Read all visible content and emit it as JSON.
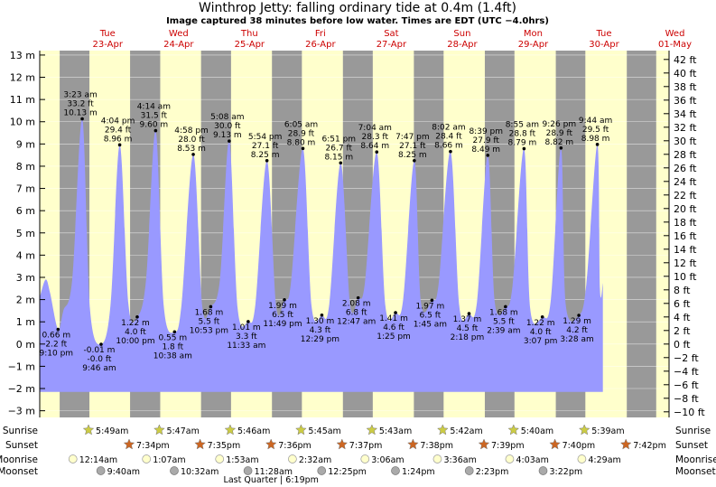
{
  "title": "Winthrop Jetty: falling  ordinary tide at 0.4m (1.4ft)",
  "subtitle": "Image captured 38 minutes before low water. Times are EDT (UTC −4.0hrs)",
  "chart_data": {
    "type": "area",
    "y_left_unit": "m",
    "y_left_range": [
      -3.3,
      13.2
    ],
    "y_left_ticks": [
      -3,
      -2,
      -1,
      0,
      1,
      2,
      3,
      4,
      5,
      6,
      7,
      8,
      9,
      10,
      11,
      12,
      13
    ],
    "y_right_unit": "ft",
    "y_right_ticks": [
      -10,
      -8,
      -6,
      -4,
      -2,
      0,
      2,
      4,
      6,
      8,
      10,
      12,
      14,
      16,
      18,
      20,
      22,
      24,
      26,
      28,
      30,
      32,
      34,
      36,
      38,
      40,
      42
    ],
    "x_range_hours": [
      -11,
      202
    ],
    "days": [
      {
        "dow": "Tue",
        "date": "23-Apr"
      },
      {
        "dow": "Wed",
        "date": "24-Apr"
      },
      {
        "dow": "Thu",
        "date": "25-Apr"
      },
      {
        "dow": "Fri",
        "date": "26-Apr"
      },
      {
        "dow": "Sat",
        "date": "27-Apr"
      },
      {
        "dow": "Sun",
        "date": "28-Apr"
      },
      {
        "dow": "Mon",
        "date": "29-Apr"
      },
      {
        "dow": "Tue",
        "date": "30-Apr"
      },
      {
        "dow": "Wed",
        "date": "01-May"
      }
    ],
    "night_hours": [
      [
        -4.25,
        5.82
      ],
      [
        19.58,
        29.78
      ],
      [
        43.6,
        53.75
      ],
      [
        67.6,
        77.73
      ],
      [
        91.62,
        101.72
      ],
      [
        115.63,
        125.7
      ],
      [
        139.65,
        149.68
      ],
      [
        163.67,
        173.67
      ],
      [
        187.7,
        197.65
      ]
    ],
    "tide_curve_m": [
      [
        -11,
        2.1
      ],
      [
        -9,
        2.9
      ],
      [
        -7.5,
        2.3
      ],
      [
        -4.8,
        0.66
      ],
      [
        -3,
        1.5
      ],
      [
        0,
        2.9
      ],
      [
        3.38,
        10.13
      ],
      [
        6,
        1.6
      ],
      [
        9.77,
        -0.01
      ],
      [
        13,
        1.8
      ],
      [
        16.07,
        8.96
      ],
      [
        19,
        1.8
      ],
      [
        22,
        1.22
      ],
      [
        25,
        2.9
      ],
      [
        28.23,
        9.6
      ],
      [
        31,
        1.7
      ],
      [
        34.63,
        0.55
      ],
      [
        37,
        1.8
      ],
      [
        40.97,
        8.53
      ],
      [
        44,
        1.7
      ],
      [
        46.88,
        1.68
      ],
      [
        50,
        2.9
      ],
      [
        53.13,
        9.13
      ],
      [
        56,
        1.6
      ],
      [
        59.55,
        1.01
      ],
      [
        62,
        1.8
      ],
      [
        65.9,
        8.25
      ],
      [
        69,
        1.7
      ],
      [
        71.82,
        1.99
      ],
      [
        74,
        2.7
      ],
      [
        78.08,
        8.8
      ],
      [
        81,
        1.7
      ],
      [
        84.48,
        1.3
      ],
      [
        87,
        1.8
      ],
      [
        90.85,
        8.15
      ],
      [
        94,
        1.8
      ],
      [
        96.78,
        2.08
      ],
      [
        99,
        2.7
      ],
      [
        103.07,
        8.64
      ],
      [
        106,
        1.7
      ],
      [
        109.42,
        1.41
      ],
      [
        112,
        2.0
      ],
      [
        115.78,
        8.25
      ],
      [
        118,
        1.9
      ],
      [
        121.75,
        1.97
      ],
      [
        124,
        2.7
      ],
      [
        128.03,
        8.66
      ],
      [
        131,
        1.7
      ],
      [
        134.3,
        1.37
      ],
      [
        137,
        1.9
      ],
      [
        140.65,
        8.49
      ],
      [
        143,
        1.9
      ],
      [
        146.65,
        1.68
      ],
      [
        149,
        2.6
      ],
      [
        152.92,
        8.79
      ],
      [
        155,
        1.6
      ],
      [
        159.12,
        1.22
      ],
      [
        162,
        2.0
      ],
      [
        165.43,
        8.82
      ],
      [
        167,
        1.8
      ],
      [
        171.47,
        1.29
      ],
      [
        174,
        2.7
      ],
      [
        177.73,
        8.98
      ],
      [
        178.6,
        2.5
      ],
      [
        179.6,
        2.74
      ]
    ],
    "tide_labels": [
      {
        "h": -4.8,
        "time": "9:10 pm",
        "ft": "2.2 ft",
        "m": "0.66 m",
        "kind": "low"
      },
      {
        "h": 3.38,
        "time": "3:23 am",
        "ft": "33.2 ft",
        "m": "10.13 m",
        "kind": "high"
      },
      {
        "h": 9.77,
        "time": "9:46 am",
        "ft": "-0.0 ft",
        "m": "-0.01 m",
        "kind": "low"
      },
      {
        "h": 16.07,
        "time": "4:04 pm",
        "ft": "29.4 ft",
        "m": "8.96 m",
        "kind": "high"
      },
      {
        "h": 22.0,
        "time": "10:00 pm",
        "ft": "4.0 ft",
        "m": "1.22 m",
        "kind": "low"
      },
      {
        "h": 28.23,
        "time": "4:14 am",
        "ft": "31.5 ft",
        "m": "9.60 m",
        "kind": "high"
      },
      {
        "h": 34.63,
        "time": "10:38 am",
        "ft": "1.8 ft",
        "m": "0.55 m",
        "kind": "low"
      },
      {
        "h": 40.97,
        "time": "4:58 pm",
        "ft": "28.0 ft",
        "m": "8.53 m",
        "kind": "high"
      },
      {
        "h": 46.88,
        "time": "10:53 pm",
        "ft": "5.5 ft",
        "m": "1.68 m",
        "kind": "low"
      },
      {
        "h": 53.13,
        "time": "5:08 am",
        "ft": "30.0 ft",
        "m": "9.13 m",
        "kind": "high"
      },
      {
        "h": 59.55,
        "time": "11:33 am",
        "ft": "3.3 ft",
        "m": "1.01 m",
        "kind": "low"
      },
      {
        "h": 65.9,
        "time": "5:54 pm",
        "ft": "27.1 ft",
        "m": "8.25 m",
        "kind": "high"
      },
      {
        "h": 71.82,
        "time": "11:49 pm",
        "ft": "6.5 ft",
        "m": "1.99 m",
        "kind": "low"
      },
      {
        "h": 78.08,
        "time": "6:05 am",
        "ft": "28.9 ft",
        "m": "8.80 m",
        "kind": "high"
      },
      {
        "h": 84.48,
        "time": "12:29 pm",
        "ft": "4.3 ft",
        "m": "1.30 m",
        "kind": "low"
      },
      {
        "h": 90.85,
        "time": "6:51 pm",
        "ft": "26.7 ft",
        "m": "8.15 m",
        "kind": "high"
      },
      {
        "h": 96.78,
        "time": "12:47 am",
        "ft": "6.8 ft",
        "m": "2.08 m",
        "kind": "low"
      },
      {
        "h": 103.07,
        "time": "7:04 am",
        "ft": "28.3 ft",
        "m": "8.64 m",
        "kind": "high"
      },
      {
        "h": 109.42,
        "time": "1:25 pm",
        "ft": "4.6 ft",
        "m": "1.41 m",
        "kind": "low"
      },
      {
        "h": 115.78,
        "time": "7:47 pm",
        "ft": "27.1 ft",
        "m": "8.25 m",
        "kind": "high"
      },
      {
        "h": 121.75,
        "time": "1:45 am",
        "ft": "6.5 ft",
        "m": "1.97 m",
        "kind": "low"
      },
      {
        "h": 128.03,
        "time": "8:02 am",
        "ft": "28.4 ft",
        "m": "8.66 m",
        "kind": "high"
      },
      {
        "h": 134.3,
        "time": "2:18 pm",
        "ft": "4.5 ft",
        "m": "1.37 m",
        "kind": "low"
      },
      {
        "h": 140.65,
        "time": "8:39 pm",
        "ft": "27.9 ft",
        "m": "8.49 m",
        "kind": "high"
      },
      {
        "h": 146.65,
        "time": "2:39 am",
        "ft": "5.5 ft",
        "m": "1.68 m",
        "kind": "low"
      },
      {
        "h": 152.92,
        "time": "8:55 am",
        "ft": "28.8 ft",
        "m": "8.79 m",
        "kind": "high"
      },
      {
        "h": 159.12,
        "time": "3:07 pm",
        "ft": "4.0 ft",
        "m": "1.22 m",
        "kind": "low"
      },
      {
        "h": 165.43,
        "time": "9:26 pm",
        "ft": "28.9 ft",
        "m": "8.82 m",
        "kind": "high"
      },
      {
        "h": 171.47,
        "time": "3:28 am",
        "ft": "4.2 ft",
        "m": "1.29 m",
        "kind": "low"
      },
      {
        "h": 177.73,
        "time": "9:44 am",
        "ft": "29.5 ft",
        "m": "8.98 m",
        "kind": "high"
      }
    ],
    "astro_rows": [
      "Sunrise",
      "Sunset",
      "Moonrise",
      "Moonset"
    ],
    "astro": {
      "sunrise": [
        {
          "h": 5.82,
          "t": "5:49am"
        },
        {
          "h": 29.78,
          "t": "5:47am"
        },
        {
          "h": 53.77,
          "t": "5:46am"
        },
        {
          "h": 77.75,
          "t": "5:45am"
        },
        {
          "h": 101.72,
          "t": "5:43am"
        },
        {
          "h": 125.7,
          "t": "5:42am"
        },
        {
          "h": 149.67,
          "t": "5:40am"
        },
        {
          "h": 173.65,
          "t": "5:39am"
        }
      ],
      "sunset": [
        {
          "h": 19.57,
          "t": "7:34pm"
        },
        {
          "h": 43.58,
          "t": "7:35pm"
        },
        {
          "h": 67.6,
          "t": "7:36pm"
        },
        {
          "h": 91.62,
          "t": "7:37pm"
        },
        {
          "h": 115.63,
          "t": "7:38pm"
        },
        {
          "h": 139.65,
          "t": "7:39pm"
        },
        {
          "h": 163.67,
          "t": "7:40pm"
        },
        {
          "h": 187.7,
          "t": "7:42pm"
        }
      ],
      "moonrise": [
        {
          "h": 0.23,
          "t": "12:14am"
        },
        {
          "h": 25.12,
          "t": "1:07am"
        },
        {
          "h": 49.88,
          "t": "1:53am"
        },
        {
          "h": 74.53,
          "t": "2:32am"
        },
        {
          "h": 99.1,
          "t": "3:06am"
        },
        {
          "h": 123.6,
          "t": "3:36am"
        },
        {
          "h": 148.05,
          "t": "4:03am"
        },
        {
          "h": 172.48,
          "t": "4:29am"
        }
      ],
      "moonset": [
        {
          "h": 9.67,
          "t": "9:40am"
        },
        {
          "h": 34.53,
          "t": "10:32am"
        },
        {
          "h": 59.47,
          "t": "11:28am"
        },
        {
          "h": 84.42,
          "t": "12:25pm"
        },
        {
          "h": 109.4,
          "t": "1:24pm"
        },
        {
          "h": 134.38,
          "t": "2:23pm"
        },
        {
          "h": 159.37,
          "t": "3:22pm"
        }
      ]
    },
    "moon_phase": "Last Quarter | 6:19pm",
    "colors": {
      "day_bg": "#ffffcc",
      "night_bg": "#999999",
      "water": "#9999ff",
      "day_label": "#cc0000",
      "sun_star": "#cccc44",
      "sunset_star": "#cc6622",
      "moon_disc": "#ffffcc",
      "moonset_disc": "#aaaaaa"
    }
  }
}
